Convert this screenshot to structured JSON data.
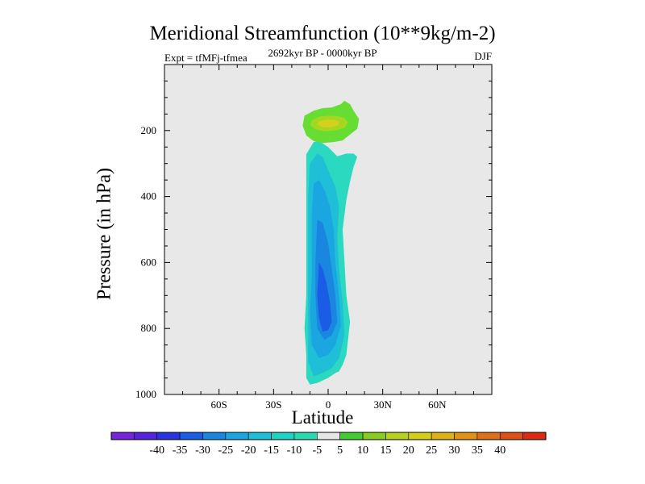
{
  "chart_data": {
    "type": "contour",
    "title": "Meridional Streamfunction (10**9kg/m-2)",
    "subtitle_left": "Expt = tfMFj-tfmea",
    "subtitle_center": "2692kyr BP - 0000kyr BP",
    "subtitle_right": "DJF",
    "xlabel": "Latitude",
    "ylabel": "Pressure (in hPa)",
    "x_range": [
      -90,
      90
    ],
    "y_range": [
      0,
      1000
    ],
    "y_inverted": true,
    "x_ticks": [
      {
        "value": -60,
        "label": "60S"
      },
      {
        "value": -30,
        "label": "30S"
      },
      {
        "value": 0,
        "label": "0"
      },
      {
        "value": 30,
        "label": "30N"
      },
      {
        "value": 60,
        "label": "60N"
      }
    ],
    "y_ticks": [
      {
        "value": 200,
        "label": "200"
      },
      {
        "value": 400,
        "label": "400"
      },
      {
        "value": 600,
        "label": "600"
      },
      {
        "value": 800,
        "label": "800"
      },
      {
        "value": 1000,
        "label": "1000"
      }
    ],
    "background_color": "#e8e8e8",
    "regions": [
      {
        "name": "negative-cell-outer",
        "level": -10,
        "color": "#2ad9c0",
        "points": [
          [
            -12,
            272
          ],
          [
            -8,
            235
          ],
          [
            -5,
            232
          ],
          [
            0,
            250
          ],
          [
            5,
            278
          ],
          [
            10,
            270
          ],
          [
            14,
            270
          ],
          [
            16,
            280
          ],
          [
            14,
            310
          ],
          [
            12,
            355
          ],
          [
            10,
            410
          ],
          [
            8,
            500
          ],
          [
            9,
            600
          ],
          [
            10,
            700
          ],
          [
            12,
            780
          ],
          [
            10,
            880
          ],
          [
            8,
            910
          ],
          [
            6,
            930
          ],
          [
            4,
            935
          ],
          [
            0,
            950
          ],
          [
            -6,
            965
          ],
          [
            -10,
            970
          ],
          [
            -12,
            950
          ],
          [
            -12,
            880
          ],
          [
            -13,
            800
          ],
          [
            -12,
            700
          ],
          [
            -12,
            600
          ],
          [
            -12,
            500
          ],
          [
            -12,
            400
          ],
          [
            -12,
            320
          ]
        ]
      },
      {
        "name": "negative-cell-15",
        "level": -15,
        "color": "#20bfd8",
        "points": [
          [
            -10,
            300
          ],
          [
            -6,
            270
          ],
          [
            -3,
            280
          ],
          [
            0,
            320
          ],
          [
            4,
            370
          ],
          [
            6,
            430
          ],
          [
            5,
            520
          ],
          [
            6,
            620
          ],
          [
            8,
            720
          ],
          [
            9,
            820
          ],
          [
            6,
            890
          ],
          [
            2,
            920
          ],
          [
            -3,
            935
          ],
          [
            -8,
            945
          ],
          [
            -11,
            900
          ],
          [
            -11,
            800
          ],
          [
            -11,
            700
          ],
          [
            -11,
            600
          ],
          [
            -11,
            500
          ],
          [
            -11,
            400
          ]
        ]
      },
      {
        "name": "negative-cell-20",
        "level": -20,
        "color": "#1aa6e0",
        "points": [
          [
            -8,
            360
          ],
          [
            -5,
            350
          ],
          [
            -2,
            380
          ],
          [
            1,
            430
          ],
          [
            3,
            500
          ],
          [
            4,
            600
          ],
          [
            6,
            700
          ],
          [
            7,
            790
          ],
          [
            4,
            850
          ],
          [
            0,
            880
          ],
          [
            -5,
            890
          ],
          [
            -9,
            850
          ],
          [
            -10,
            750
          ],
          [
            -9,
            650
          ],
          [
            -9,
            550
          ],
          [
            -9,
            450
          ]
        ]
      },
      {
        "name": "negative-cell-25",
        "level": -25,
        "color": "#1a86e0",
        "points": [
          [
            -6,
            470
          ],
          [
            -3,
            480
          ],
          [
            0,
            540
          ],
          [
            2,
            620
          ],
          [
            4,
            700
          ],
          [
            5,
            780
          ],
          [
            2,
            820
          ],
          [
            -2,
            835
          ],
          [
            -6,
            800
          ],
          [
            -7,
            700
          ],
          [
            -7,
            600
          ]
        ]
      },
      {
        "name": "negative-cell-30",
        "level": -30,
        "color": "#1a5ce6",
        "points": [
          [
            -5,
            600
          ],
          [
            -3,
            620
          ],
          [
            -1,
            660
          ],
          [
            1,
            720
          ],
          [
            2,
            780
          ],
          [
            0,
            805
          ],
          [
            -3,
            810
          ],
          [
            -5,
            770
          ],
          [
            -6,
            700
          ]
        ]
      },
      {
        "name": "positive-cell-5",
        "level": 5,
        "color": "#66dd33",
        "points": [
          [
            -13,
            155
          ],
          [
            -8,
            140
          ],
          [
            -3,
            132
          ],
          [
            2,
            130
          ],
          [
            7,
            120
          ],
          [
            9,
            110
          ],
          [
            12,
            120
          ],
          [
            14,
            140
          ],
          [
            17,
            165
          ],
          [
            16,
            195
          ],
          [
            12,
            212
          ],
          [
            8,
            230
          ],
          [
            3,
            235
          ],
          [
            -3,
            238
          ],
          [
            -8,
            232
          ],
          [
            -12,
            215
          ],
          [
            -14,
            185
          ]
        ]
      },
      {
        "name": "positive-cell-10",
        "level": 10,
        "color": "#a5d622",
        "points": [
          [
            -9,
            170
          ],
          [
            -5,
            158
          ],
          [
            0,
            155
          ],
          [
            5,
            156
          ],
          [
            9,
            162
          ],
          [
            11,
            175
          ],
          [
            9,
            192
          ],
          [
            4,
            200
          ],
          [
            -2,
            203
          ],
          [
            -7,
            196
          ],
          [
            -10,
            183
          ]
        ]
      },
      {
        "name": "positive-cell-15",
        "level": 15,
        "color": "#d4d11c",
        "points": [
          [
            -5,
            172
          ],
          [
            -1,
            167
          ],
          [
            3,
            167
          ],
          [
            6,
            173
          ],
          [
            6,
            183
          ],
          [
            2,
            190
          ],
          [
            -3,
            190
          ],
          [
            -6,
            182
          ]
        ]
      }
    ],
    "colorbar": {
      "colors": [
        "#7722dd",
        "#5522dd",
        "#2a33e0",
        "#1a5ce6",
        "#1a86e0",
        "#1aa6e0",
        "#20bfd8",
        "#20d1c5",
        "#2ad9b0",
        "#e6e6e6",
        "#44cc33",
        "#88cc22",
        "#b8d020",
        "#d6cc1c",
        "#e0b018",
        "#e29016",
        "#e07018",
        "#e05016",
        "#dd2a11"
      ],
      "labels": [
        "-40",
        "-35",
        "-30",
        "-25",
        "-20",
        "-15",
        "-10",
        "-5",
        "5",
        "10",
        "15",
        "20",
        "25",
        "30",
        "35",
        "40"
      ]
    }
  }
}
